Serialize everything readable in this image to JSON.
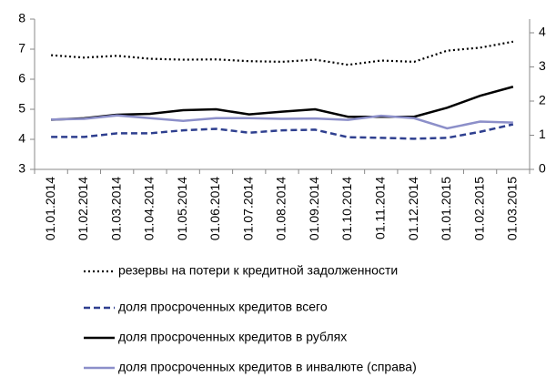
{
  "chart_data": {
    "type": "line",
    "x": [
      "01.01.2014",
      "01.02.2014",
      "01.03.2014",
      "01.04.2014",
      "01.05.2014",
      "01.06.2014",
      "01.07.2014",
      "01.08.2014",
      "01.09.2014",
      "01.10.2014",
      "01.11.2014",
      "01.12.2014",
      "01.01.2015",
      "01.02.2015",
      "01.03.2015"
    ],
    "ylim": [
      3,
      8
    ],
    "yticks": [
      3,
      4,
      5,
      6,
      7,
      8
    ],
    "y2lim": [
      0,
      4.4
    ],
    "y2ticks": [
      0,
      1,
      2,
      3,
      4
    ],
    "grid": false,
    "series": [
      {
        "name": "резервы на потери к кредитной задолженности",
        "color": "#000000",
        "dash": "dotted",
        "values": [
          6.8,
          6.72,
          6.78,
          6.68,
          6.65,
          6.66,
          6.6,
          6.58,
          6.65,
          6.48,
          6.62,
          6.58,
          6.95,
          7.05,
          7.25
        ]
      },
      {
        "name": "доля просроченных кредитов всего",
        "color": "#2e3f8f",
        "dash": "dashed",
        "values": [
          4.08,
          4.08,
          4.2,
          4.2,
          4.3,
          4.35,
          4.22,
          4.3,
          4.32,
          4.07,
          4.05,
          4.02,
          4.05,
          4.25,
          4.5
        ]
      },
      {
        "name": "доля просроченных кредитов в рублях",
        "color": "#000000",
        "dash": "solid",
        "values": [
          4.65,
          4.7,
          4.82,
          4.85,
          4.97,
          5.0,
          4.83,
          4.92,
          5.0,
          4.75,
          4.75,
          4.75,
          5.05,
          5.45,
          5.75
        ]
      },
      {
        "name": "доля просроченных кредитов в инвалюте (справа)",
        "color": "#8c8fc9",
        "dash": "solid",
        "axis": "y2",
        "values": [
          1.46,
          1.48,
          1.58,
          1.5,
          1.42,
          1.5,
          1.5,
          1.48,
          1.49,
          1.45,
          1.57,
          1.5,
          1.2,
          1.4,
          1.37
        ]
      }
    ]
  }
}
